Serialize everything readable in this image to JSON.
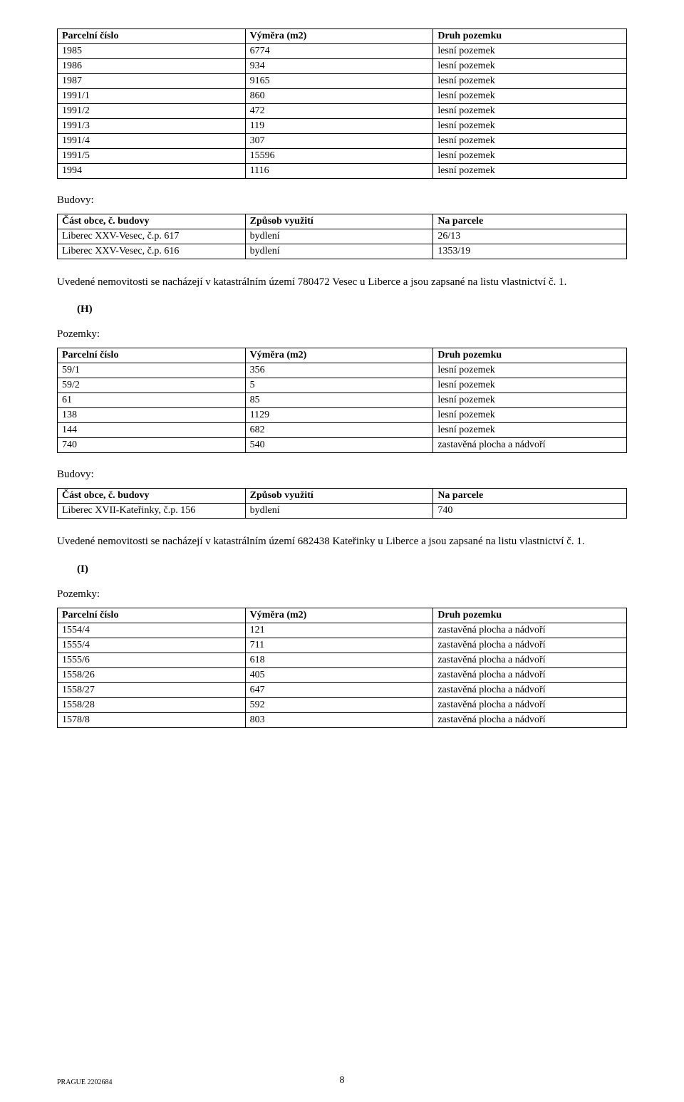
{
  "pozemky_header": {
    "col1": "Parcelní číslo",
    "col2": "Výměra (m2)",
    "col3": "Druh pozemku"
  },
  "budovy_header": {
    "col1": "Část obce, č. budovy",
    "col2": "Způsob využití",
    "col3": "Na parcele"
  },
  "labels": {
    "budovy": "Budovy:",
    "pozemky": "Pozemky:"
  },
  "druh": {
    "lesni": "lesní pozemek",
    "zastavena": "zastavěná plocha a nádvoří"
  },
  "vyuziti": {
    "bydleni": "bydlení"
  },
  "table1": {
    "rows": [
      {
        "p": "1985",
        "v": "6774",
        "d": "lesní pozemek"
      },
      {
        "p": "1986",
        "v": "934",
        "d": "lesní pozemek"
      },
      {
        "p": "1987",
        "v": "9165",
        "d": "lesní pozemek"
      },
      {
        "p": "1991/1",
        "v": "860",
        "d": "lesní pozemek"
      },
      {
        "p": "1991/2",
        "v": "472",
        "d": "lesní pozemek"
      },
      {
        "p": "1991/3",
        "v": "119",
        "d": "lesní pozemek"
      },
      {
        "p": "1991/4",
        "v": "307",
        "d": "lesní pozemek"
      },
      {
        "p": "1991/5",
        "v": "15596",
        "d": "lesní pozemek"
      },
      {
        "p": "1994",
        "v": "1116",
        "d": "lesní pozemek"
      }
    ]
  },
  "table2": {
    "rows": [
      {
        "c": "Liberec XXV-Vesec, č.p. 617",
        "z": "bydlení",
        "n": "26/13"
      },
      {
        "c": "Liberec XXV-Vesec, č.p. 616",
        "z": "bydlení",
        "n": "1353/19"
      }
    ]
  },
  "para1": "Uvedené nemovitosti se nacházejí v katastrálním území 780472 Vesec u Liberce a jsou zapsané na listu vlastnictví č. 1.",
  "letterH": "(H)",
  "table3": {
    "rows": [
      {
        "p": "59/1",
        "v": "356",
        "d": "lesní pozemek"
      },
      {
        "p": "59/2",
        "v": "5",
        "d": "lesní pozemek"
      },
      {
        "p": "61",
        "v": "85",
        "d": "lesní pozemek"
      },
      {
        "p": "138",
        "v": "1129",
        "d": "lesní pozemek"
      },
      {
        "p": "144",
        "v": "682",
        "d": "lesní pozemek"
      },
      {
        "p": "740",
        "v": "540",
        "d": "zastavěná plocha a nádvoří"
      }
    ]
  },
  "table4": {
    "rows": [
      {
        "c": "Liberec XVII-Kateřinky, č.p. 156",
        "z": "bydlení",
        "n": "740"
      }
    ]
  },
  "para2": "Uvedené nemovitosti se nacházejí v katastrálním území 682438 Kateřinky u Liberce a jsou zapsané na listu vlastnictví č. 1.",
  "letterI": "(I)",
  "table5": {
    "rows": [
      {
        "p": "1554/4",
        "v": "121",
        "d": "zastavěná plocha a nádvoří"
      },
      {
        "p": "1555/4",
        "v": "711",
        "d": "zastavěná plocha a nádvoří"
      },
      {
        "p": "1555/6",
        "v": "618",
        "d": "zastavěná plocha a nádvoří"
      },
      {
        "p": "1558/26",
        "v": "405",
        "d": "zastavěná plocha a nádvoří"
      },
      {
        "p": "1558/27",
        "v": "647",
        "d": "zastavěná plocha a nádvoří"
      },
      {
        "p": "1558/28",
        "v": "592",
        "d": "zastavěná plocha a nádvoří"
      },
      {
        "p": "1578/8",
        "v": "803",
        "d": "zastavěná plocha a nádvoří"
      }
    ]
  },
  "footer": {
    "docid": "PRAGUE 2202684",
    "page": "8"
  }
}
